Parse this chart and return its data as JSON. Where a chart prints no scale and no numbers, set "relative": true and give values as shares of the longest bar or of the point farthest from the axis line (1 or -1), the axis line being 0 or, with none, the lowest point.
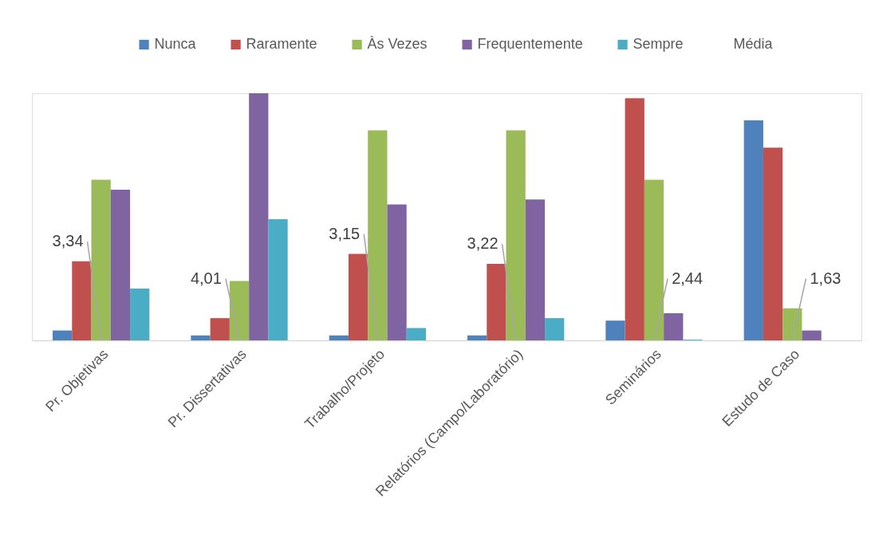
{
  "chart_data": {
    "type": "bar",
    "relative": true,
    "legend": "top",
    "categories": [
      "Pr. Objetivas",
      "Pr. Dissertativas",
      "Trabalho/Projeto",
      "Relatórios (Campo/Laboratório)",
      "Seminários",
      "Estudo de Caso"
    ],
    "series": [
      {
        "name": "Nunca",
        "color": "#4f81bd",
        "values": [
          0.04,
          0.02,
          0.02,
          0.02,
          0.08,
          0.89
        ]
      },
      {
        "name": "Raramente",
        "color": "#c0504d",
        "values": [
          0.32,
          0.09,
          0.35,
          0.31,
          0.98,
          0.78
        ]
      },
      {
        "name": "Às Vezes",
        "color": "#9bbb59",
        "values": [
          0.65,
          0.24,
          0.85,
          0.85,
          0.65,
          0.13
        ]
      },
      {
        "name": "Frequentemente",
        "color": "#8064a2",
        "values": [
          0.61,
          1,
          0.55,
          0.57,
          0.11,
          0.04
        ]
      },
      {
        "name": "Sempre",
        "color": "#4bacc6",
        "values": [
          0.21,
          0.49,
          0.05,
          0.09,
          0.003,
          null
        ]
      },
      {
        "name": "Média",
        "color": null,
        "type": "line",
        "values": [
          null,
          null,
          null,
          null,
          null,
          null
        ]
      }
    ],
    "annotations": [
      "3,34",
      "4,01",
      "3,15",
      "3,22",
      "2,44",
      "1,63"
    ]
  }
}
